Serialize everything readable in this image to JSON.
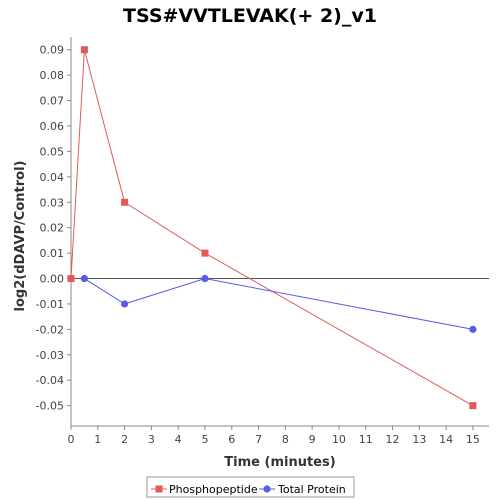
{
  "chart_data": {
    "type": "line",
    "title": "TSS#VVTLEVAK(+ 2)_v1",
    "xlabel": "Time (minutes)",
    "ylabel": "log2(dDAVP/Control)",
    "xlim": [
      0,
      15.6
    ],
    "ylim": [
      -0.058,
      0.095
    ],
    "x_ticks": [
      0,
      1,
      2,
      3,
      4,
      5,
      6,
      7,
      8,
      9,
      10,
      11,
      12,
      13,
      14,
      15
    ],
    "y_ticks": [
      0.09,
      0.08,
      0.07,
      0.06,
      0.05,
      0.04,
      0.03,
      0.02,
      0.01,
      0.0,
      -0.01,
      -0.02,
      -0.03,
      -0.04,
      -0.05
    ],
    "y_tick_labels": [
      "0.09",
      "0.08",
      "0.07",
      "0.06",
      "0.05",
      "0.04",
      "0.03",
      "0.02",
      "0.01",
      "0.00",
      "-0.01",
      "-0.02",
      "-0.03",
      "-0.04",
      "-0.05"
    ],
    "grid": false,
    "legend_position": "bottom",
    "series": [
      {
        "name": "Phosphopeptide",
        "color": "#e05a5a",
        "marker": "square",
        "x": [
          0,
          0.5,
          2,
          5,
          15
        ],
        "y": [
          0.0,
          0.09,
          0.03,
          0.01,
          -0.05
        ]
      },
      {
        "name": "Total Protein",
        "color": "#5a5ae8",
        "marker": "circle",
        "x": [
          0.5,
          2,
          5,
          15
        ],
        "y": [
          0.0,
          -0.01,
          0.0,
          -0.02
        ]
      }
    ]
  }
}
